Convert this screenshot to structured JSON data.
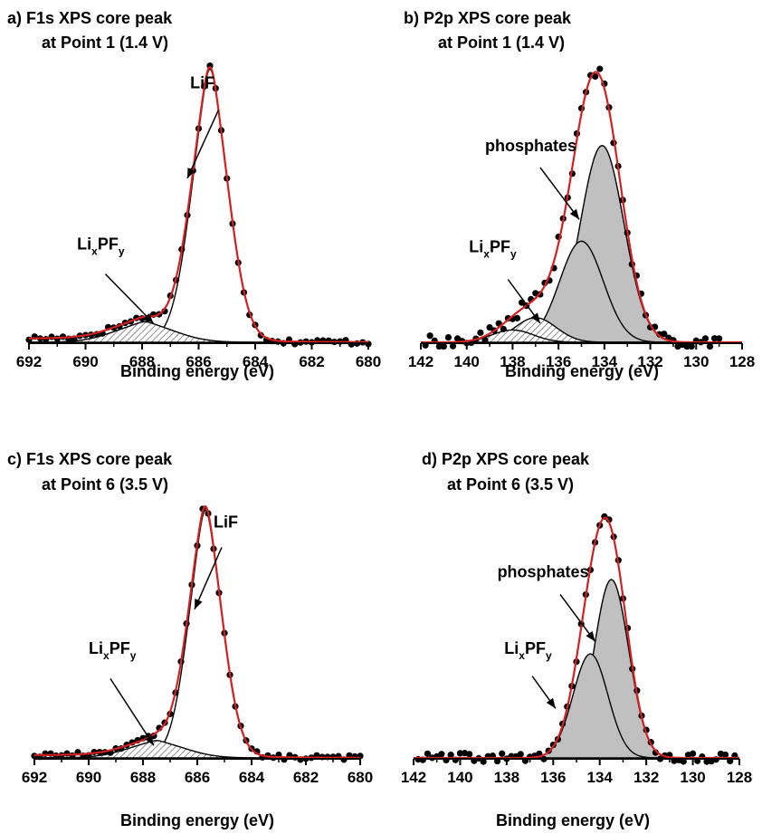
{
  "chart_data": [
    {
      "type": "line",
      "panel": "a",
      "title_line1": "a) F1s XPS core peak",
      "title_line2": "at Point 1 (1.4 V)",
      "xlabel": "Binding energy (eV)",
      "ylabel": "",
      "xlim": [
        692,
        680
      ],
      "x_reversed": true,
      "ylim": [
        0,
        1.0
      ],
      "xticks": [
        692,
        690,
        688,
        686,
        684,
        682,
        680
      ],
      "grid": false,
      "colors": {
        "data": "#000000",
        "envelope": "#d42020",
        "component": "#000000",
        "component_fill_shaded": "#ffffff",
        "hatch": "#555555"
      },
      "components": [
        {
          "label": "LiF",
          "center": 685.6,
          "height": 1.0,
          "sigma": 0.68,
          "gamma": 0.35,
          "fill": "none"
        },
        {
          "label": "LixPFy",
          "center": 687.9,
          "height": 0.075,
          "sigma": 1.1,
          "gamma": 0.4,
          "fill": "hatch"
        }
      ],
      "tail": {
        "side": "high",
        "amp": 0.025,
        "scale": 2.5
      },
      "points": {
        "start": 692,
        "end": 680,
        "step": 0.2,
        "noise": 0.01
      },
      "annotations": [
        {
          "text": "LiF",
          "sub1": "",
          "mid": "",
          "sub2": "",
          "text_x": 686.3,
          "text_y": 0.93,
          "arrow_from": [
            685.3,
            0.85
          ],
          "arrow_to": [
            686.4,
            0.6
          ]
        },
        {
          "text": "Li",
          "sub1": "x",
          "mid": "PF",
          "sub2": "y",
          "text_x": 690.3,
          "text_y": 0.34,
          "arrow_from": [
            689.3,
            0.25
          ],
          "arrow_to": [
            687.6,
            0.07
          ]
        }
      ]
    },
    {
      "type": "line",
      "panel": "b",
      "title_line1": "b) P2p XPS core peak",
      "title_line2": "at Point 1 (1.4 V)",
      "xlabel": "Binding energy (eV)",
      "ylabel": "",
      "xlim": [
        142,
        128
      ],
      "x_reversed": true,
      "ylim": [
        0,
        1.0
      ],
      "xticks": [
        142,
        140,
        138,
        136,
        134,
        132,
        130,
        128
      ],
      "grid": false,
      "colors": {
        "data": "#000000",
        "envelope": "#d42020",
        "component": "#000000",
        "component_fill_shaded": "#c0c0c0",
        "hatch": "#555555"
      },
      "components": [
        {
          "label": "phosphates",
          "center": 134.1,
          "height": 0.72,
          "sigma": 0.95,
          "gamma": 0.0,
          "fill": "shaded"
        },
        {
          "label": "phosphates",
          "center": 135.0,
          "height": 0.37,
          "sigma": 0.95,
          "gamma": 0.0,
          "fill": "shaded"
        },
        {
          "label": "LixPFy",
          "center": 137.0,
          "height": 0.09,
          "sigma": 0.9,
          "gamma": 0.0,
          "fill": "hatch"
        },
        {
          "label": "LixPFy",
          "center": 138.0,
          "height": 0.045,
          "sigma": 0.9,
          "gamma": 0.0,
          "fill": "hatch"
        }
      ],
      "tail": null,
      "points": {
        "start": 141.8,
        "end": 129.0,
        "step": 0.2,
        "noise": 0.025
      },
      "annotations": [
        {
          "text": "phosphates",
          "sub1": "",
          "mid": "",
          "sub2": "",
          "text_x": 139.2,
          "text_y": 0.7,
          "arrow_from": [
            136.8,
            0.64
          ],
          "arrow_to": [
            135.1,
            0.45
          ]
        },
        {
          "text": "Li",
          "sub1": "x",
          "mid": "PF",
          "sub2": "y",
          "text_x": 139.9,
          "text_y": 0.33,
          "arrow_from": [
            138.2,
            0.23
          ],
          "arrow_to": [
            136.8,
            0.07
          ]
        }
      ]
    },
    {
      "type": "line",
      "panel": "c",
      "title_line1": "c) F1s XPS core peak",
      "title_line2": "at Point 6 (3.5 V)",
      "xlabel": "Binding energy (eV)",
      "ylabel": "",
      "xlim": [
        692,
        680
      ],
      "x_reversed": true,
      "ylim": [
        0,
        1.0
      ],
      "xticks": [
        692,
        690,
        688,
        686,
        684,
        682,
        680
      ],
      "grid": false,
      "colors": {
        "data": "#000000",
        "envelope": "#d42020",
        "component": "#000000",
        "component_fill_shaded": "#ffffff",
        "hatch": "#555555"
      },
      "components": [
        {
          "label": "LiF",
          "center": 685.7,
          "height": 1.0,
          "sigma": 0.65,
          "gamma": 0.35,
          "fill": "none"
        },
        {
          "label": "LixPFy",
          "center": 687.5,
          "height": 0.07,
          "sigma": 1.1,
          "gamma": 0.4,
          "fill": "hatch"
        }
      ],
      "tail": {
        "side": "high",
        "amp": 0.02,
        "scale": 2.5
      },
      "points": {
        "start": 692,
        "end": 680,
        "step": 0.2,
        "noise": 0.01
      },
      "annotations": [
        {
          "text": "LiF",
          "sub1": "",
          "mid": "",
          "sub2": "",
          "text_x": 685.4,
          "text_y": 0.93,
          "arrow_from": [
            685.1,
            0.85
          ],
          "arrow_to": [
            686.1,
            0.6
          ]
        },
        {
          "text": "Li",
          "sub1": "x",
          "mid": "PF",
          "sub2": "y",
          "text_x": 690.0,
          "text_y": 0.42,
          "arrow_from": [
            689.2,
            0.32
          ],
          "arrow_to": [
            687.6,
            0.05
          ]
        }
      ]
    },
    {
      "type": "line",
      "panel": "d",
      "title_line1": "d) P2p XPS core peak",
      "title_line2": "at Point 6 (3.5 V)",
      "xlabel": "Binding energy (eV)",
      "ylabel": "",
      "xlim": [
        142,
        128
      ],
      "x_reversed": true,
      "ylim": [
        0,
        1.0
      ],
      "xticks": [
        142,
        140,
        138,
        136,
        134,
        132,
        130,
        128
      ],
      "grid": false,
      "colors": {
        "data": "#000000",
        "envelope": "#d42020",
        "component": "#000000",
        "component_fill_shaded": "#c0c0c0",
        "hatch": "#555555"
      },
      "components": [
        {
          "label": "phosphates",
          "center": 133.5,
          "height": 0.72,
          "sigma": 0.75,
          "gamma": 0.0,
          "fill": "shaded"
        },
        {
          "label": "phosphates",
          "center": 134.4,
          "height": 0.42,
          "sigma": 0.75,
          "gamma": 0.0,
          "fill": "shaded"
        }
      ],
      "tail": null,
      "points": {
        "start": 141.8,
        "end": 128.2,
        "step": 0.2,
        "noise": 0.02
      },
      "annotations": [
        {
          "text": "phosphates",
          "sub1": "",
          "mid": "",
          "sub2": "",
          "text_x": 138.4,
          "text_y": 0.73,
          "arrow_from": [
            135.7,
            0.66
          ],
          "arrow_to": [
            134.2,
            0.47
          ]
        },
        {
          "text": "Li",
          "sub1": "x",
          "mid": "PF",
          "sub2": "y",
          "text_x": 138.1,
          "text_y": 0.42,
          "arrow_from": [
            136.9,
            0.33
          ],
          "arrow_to": [
            135.9,
            0.2
          ]
        }
      ]
    }
  ]
}
